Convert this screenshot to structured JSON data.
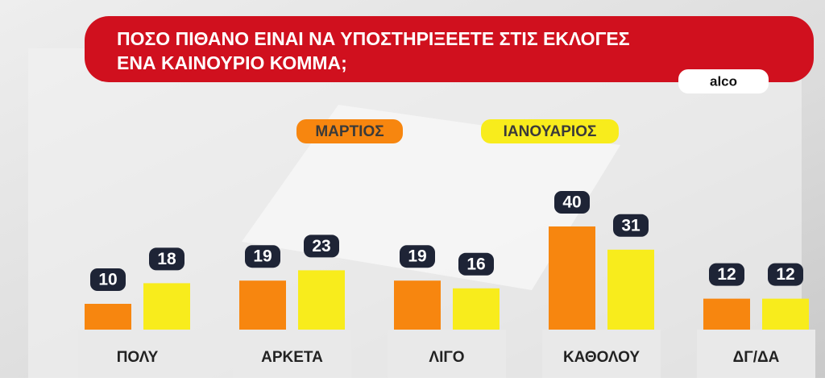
{
  "chart_data": {
    "type": "bar",
    "title": [
      "ΠΟΣΟ ΠΙΘΑΝΟ ΕΙΝΑΙ ΝΑ ΥΠΟΣΤΗΡΙΞΕΕΤΕ ΣΤΙΣ ΕΚΛΟΓΕΣ",
      "ΕΝΑ ΚΑΙΝΟΥΡΙΟ ΚΟΜΜΑ;"
    ],
    "source": "alco",
    "categories": [
      "ΠΟΛΥ",
      "ΑΡΚΕΤΑ",
      "ΛΙΓΟ",
      "ΚΑΘΟΛΟΥ",
      "ΔΓ/ΔΑ"
    ],
    "series": [
      {
        "name": "ΜΑΡΤΙΟΣ",
        "color": "#f7860f",
        "values": [
          10,
          19,
          19,
          40,
          12
        ]
      },
      {
        "name": "ΙΑΝΟΥΑΡΙΟΣ",
        "color": "#f8ec1c",
        "values": [
          18,
          23,
          16,
          31,
          12
        ]
      }
    ]
  }
}
